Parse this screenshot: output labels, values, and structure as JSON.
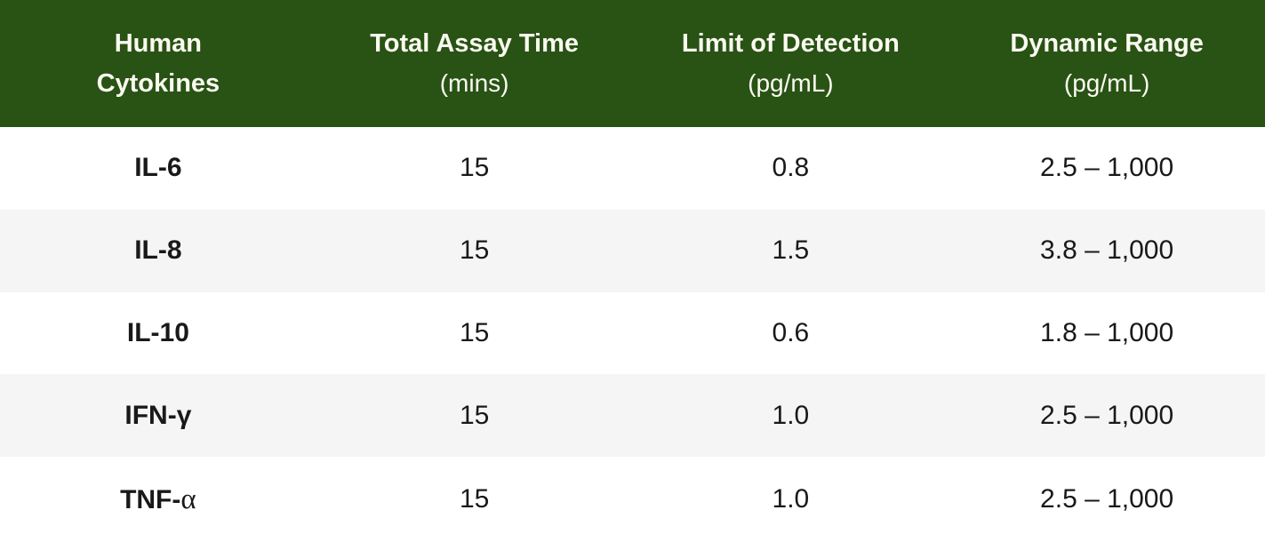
{
  "chart_data": {
    "type": "table",
    "columns": [
      {
        "label": "Human Cytokines",
        "unit": ""
      },
      {
        "label": "Total Assay Time",
        "unit": "(mins)"
      },
      {
        "label": "Limit of Detection",
        "unit": "(pg/mL)"
      },
      {
        "label": "Dynamic Range",
        "unit": "(pg/mL)"
      }
    ],
    "rows": [
      {
        "name_main": "IL-6",
        "name_greek": "",
        "assay_time_mins": "15",
        "limit_of_detection": "0.8",
        "dynamic_range": "2.5 – 1,000"
      },
      {
        "name_main": "IL-8",
        "name_greek": "",
        "assay_time_mins": "15",
        "limit_of_detection": "1.5",
        "dynamic_range": "3.8 – 1,000"
      },
      {
        "name_main": "IL-10",
        "name_greek": "",
        "assay_time_mins": "15",
        "limit_of_detection": "0.6",
        "dynamic_range": "1.8 – 1,000"
      },
      {
        "name_main": "IFN-γ",
        "name_greek": "",
        "assay_time_mins": "15",
        "limit_of_detection": "1.0",
        "dynamic_range": "2.5 – 1,000"
      },
      {
        "name_main": "TNF-",
        "name_greek": "α",
        "assay_time_mins": "15",
        "limit_of_detection": "1.0",
        "dynamic_range": "2.5 – 1,000"
      }
    ],
    "colors": {
      "header_bg": "#295215",
      "header_text": "#fafaf0",
      "row_bg": "#ffffff",
      "row_alt_bg": "#f5f5f5",
      "body_text": "#191919"
    }
  }
}
